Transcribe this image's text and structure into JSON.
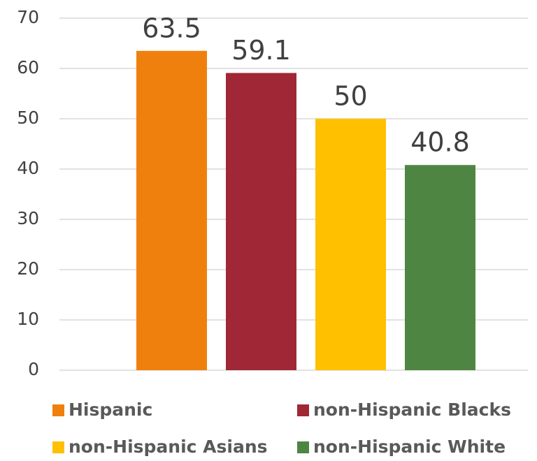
{
  "chart_data": {
    "type": "bar",
    "categories": [
      null
    ],
    "series": [
      {
        "name": "Hispanic",
        "color": "#f0800e",
        "values": [
          63.5
        ]
      },
      {
        "name": "non-Hispanic Blacks",
        "color": "#a02735",
        "values": [
          59.1
        ]
      },
      {
        "name": "non-Hispanic Asians",
        "color": "#ffc000",
        "values": [
          50
        ]
      },
      {
        "name": "non-Hispanic White",
        "color": "#4e8542",
        "values": [
          40.8
        ]
      }
    ],
    "ylim": [
      0,
      70
    ],
    "yticks": [
      0,
      10,
      20,
      30,
      40,
      50,
      60,
      70
    ],
    "grid": true,
    "legend": "bottom"
  }
}
